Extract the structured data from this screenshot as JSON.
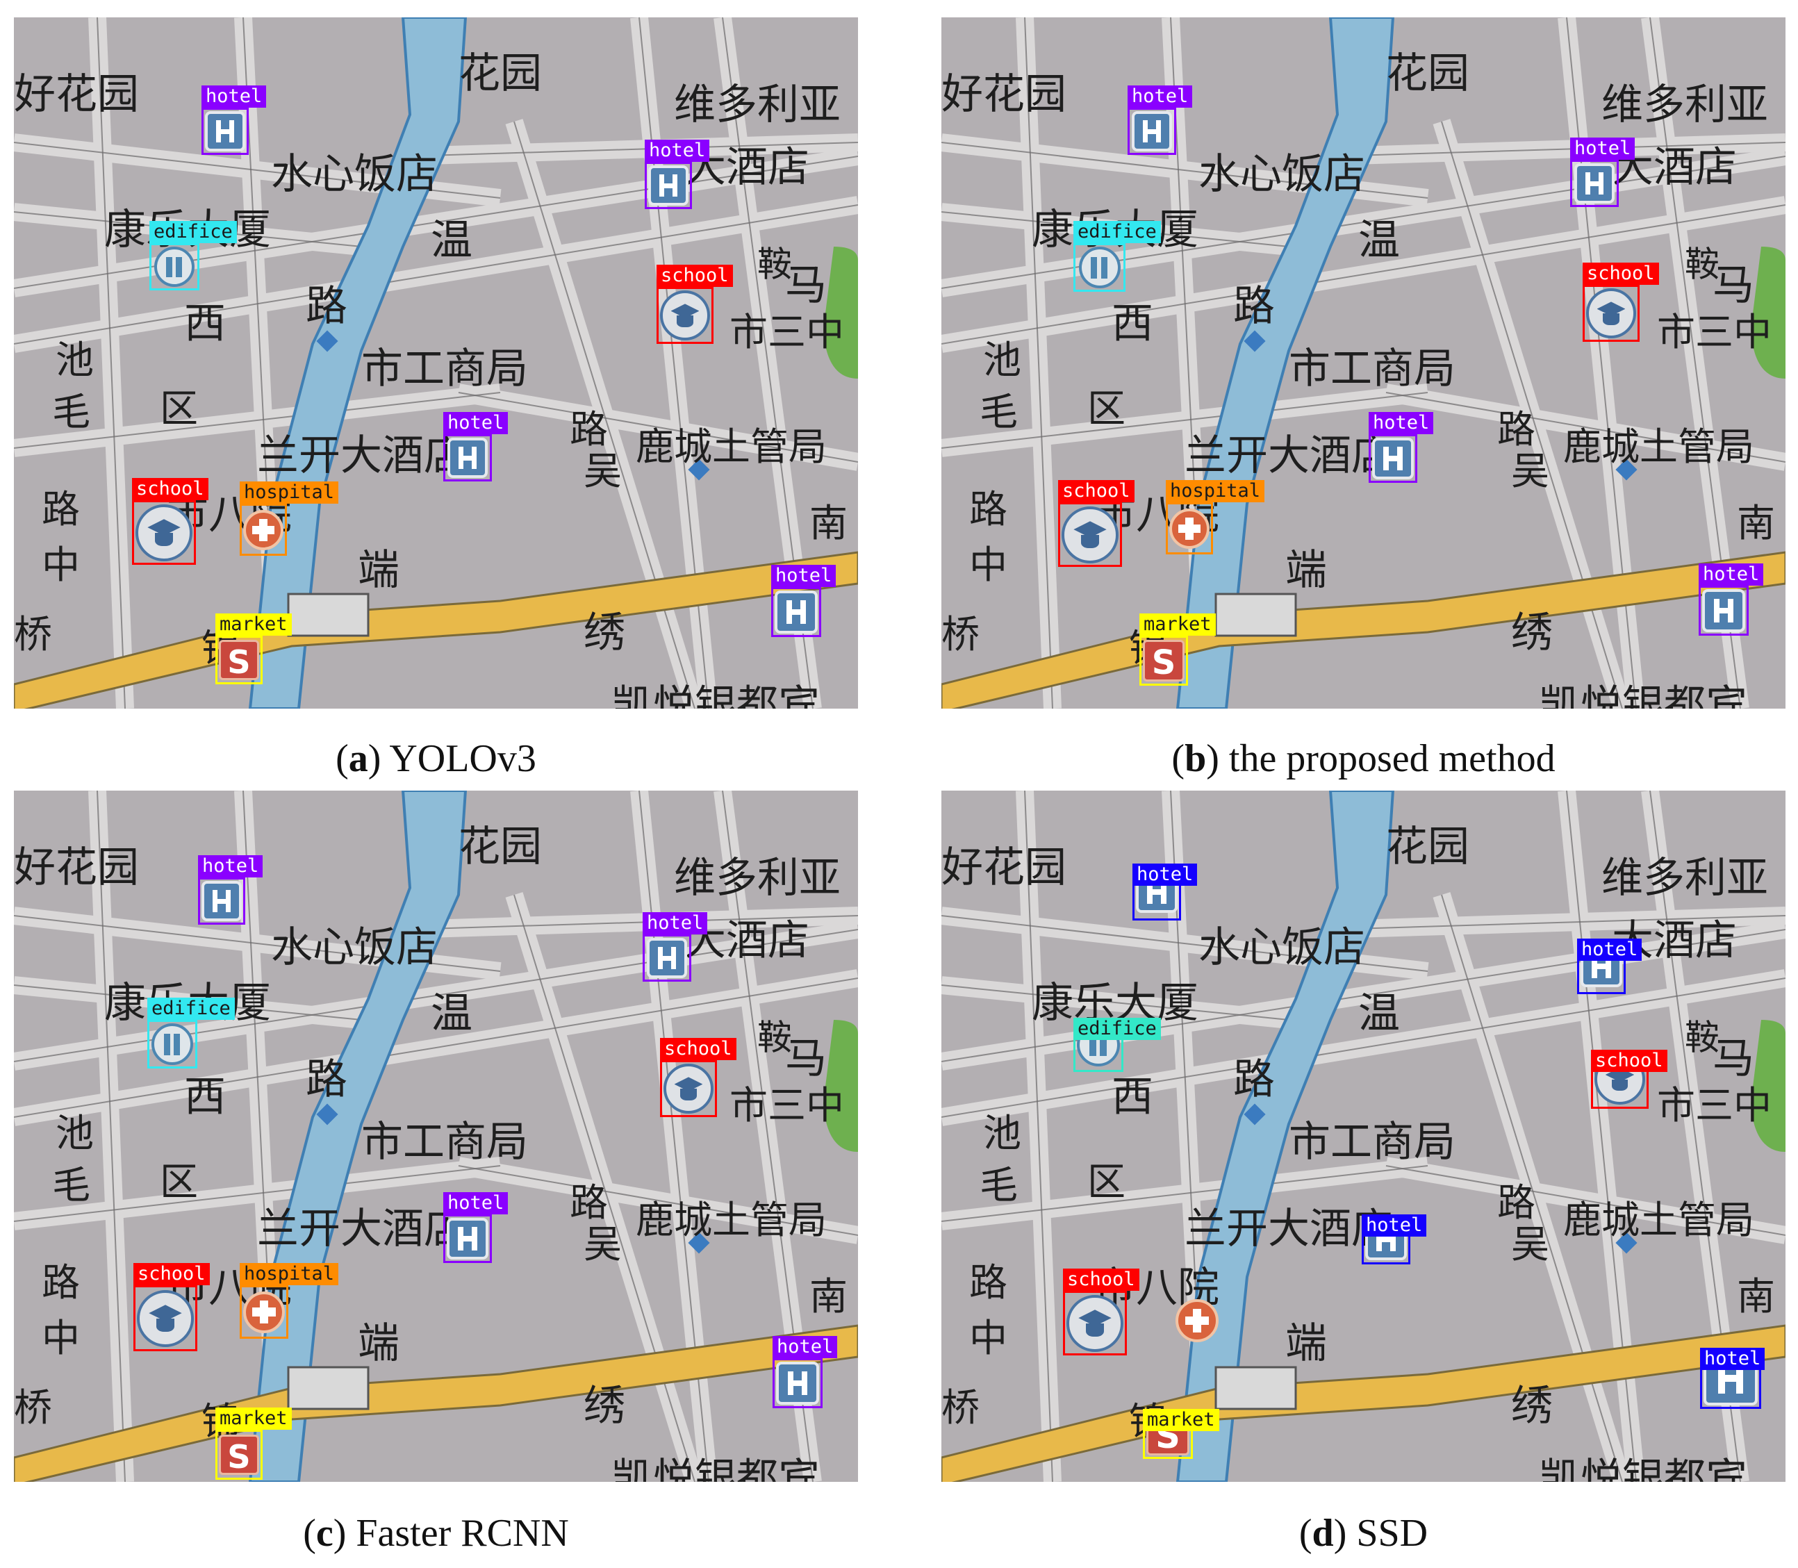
{
  "panels": [
    {
      "id": "a",
      "letter": "a",
      "method": " YOLOv3",
      "detections": [
        {
          "label": "hotel",
          "color": "#8a00ff",
          "text": "#ffffff",
          "tag": "above",
          "icon": "hotel"
        },
        {
          "label": "hotel",
          "color": "#8a00ff",
          "text": "#ffffff",
          "tag": "above",
          "icon": "hotel"
        },
        {
          "label": "edifice",
          "color": "#33e8f0",
          "text": "#1a1a1a",
          "tag": "above",
          "icon": "edifice"
        },
        {
          "label": "school",
          "color": "#ff0000",
          "text": "#ffffff",
          "tag": "above",
          "icon": "school"
        },
        {
          "label": "hotel",
          "color": "#8a00ff",
          "text": "#ffffff",
          "tag": "above",
          "icon": "hotel"
        },
        {
          "label": "school",
          "color": "#ff0000",
          "text": "#ffffff",
          "tag": "above",
          "icon": "school"
        },
        {
          "label": "hospital",
          "color": "#ff8c00",
          "text": "#1a1a1a",
          "tag": "above",
          "icon": "hospital"
        },
        {
          "label": "hotel",
          "color": "#8a00ff",
          "text": "#ffffff",
          "tag": "above",
          "icon": "hotel"
        },
        {
          "label": "market",
          "color": "#ffff00",
          "text": "#1a1a1a",
          "tag": "above",
          "icon": "market"
        }
      ]
    },
    {
      "id": "b",
      "letter": "b",
      "method": " the proposed method",
      "detections": [
        {
          "label": "hotel",
          "color": "#8a00ff",
          "text": "#ffffff",
          "tag": "above",
          "icon": "hotel"
        },
        {
          "label": "hotel",
          "color": "#8a00ff",
          "text": "#ffffff",
          "tag": "above",
          "icon": "hotel"
        },
        {
          "label": "edifice",
          "color": "#33e8f0",
          "text": "#1a1a1a",
          "tag": "above",
          "icon": "edifice"
        },
        {
          "label": "school",
          "color": "#ff0000",
          "text": "#ffffff",
          "tag": "above",
          "icon": "school"
        },
        {
          "label": "hotel",
          "color": "#8a00ff",
          "text": "#ffffff",
          "tag": "above",
          "icon": "hotel"
        },
        {
          "label": "school",
          "color": "#ff0000",
          "text": "#ffffff",
          "tag": "above",
          "icon": "school"
        },
        {
          "label": "hospital",
          "color": "#ff8c00",
          "text": "#1a1a1a",
          "tag": "above",
          "icon": "hospital"
        },
        {
          "label": "hotel",
          "color": "#8a00ff",
          "text": "#ffffff",
          "tag": "above",
          "icon": "hotel"
        },
        {
          "label": "market",
          "color": "#ffff00",
          "text": "#1a1a1a",
          "tag": "above",
          "icon": "market"
        }
      ]
    },
    {
      "id": "c",
      "letter": "c",
      "method": " Faster RCNN",
      "detections": [
        {
          "label": "hotel",
          "color": "#8a00ff",
          "text": "#ffffff",
          "tag": "above",
          "icon": "hotel"
        },
        {
          "label": "hotel",
          "color": "#8a00ff",
          "text": "#ffffff",
          "tag": "above",
          "icon": "hotel"
        },
        {
          "label": "edifice",
          "color": "#33e8f0",
          "text": "#1a1a1a",
          "tag": "above",
          "icon": "edifice"
        },
        {
          "label": "school",
          "color": "#ff0000",
          "text": "#ffffff",
          "tag": "above",
          "icon": "school"
        },
        {
          "label": "hotel",
          "color": "#8a00ff",
          "text": "#ffffff",
          "tag": "above",
          "icon": "hotel"
        },
        {
          "label": "school",
          "color": "#ff0000",
          "text": "#ffffff",
          "tag": "above",
          "icon": "school"
        },
        {
          "label": "hospital",
          "color": "#ff8c00",
          "text": "#1a1a1a",
          "tag": "above",
          "icon": "hospital"
        },
        {
          "label": "hotel",
          "color": "#8a00ff",
          "text": "#ffffff",
          "tag": "above",
          "icon": "hotel"
        },
        {
          "label": "market",
          "color": "#ffff00",
          "text": "#1a1a1a",
          "tag": "above",
          "icon": "market"
        }
      ]
    },
    {
      "id": "d",
      "letter": "d",
      "method": " SSD",
      "detections": [
        {
          "label": "hotel",
          "color": "#1400ff",
          "text": "#ffffff",
          "tag": "inside",
          "icon": "hotel"
        },
        {
          "label": "hotel",
          "color": "#1400ff",
          "text": "#ffffff",
          "tag": "inside",
          "icon": "hotel"
        },
        {
          "label": "edifice",
          "color": "#33e8c8",
          "text": "#1a1a1a",
          "tag": "inside",
          "icon": "edifice"
        },
        {
          "label": "school",
          "color": "#ff0000",
          "text": "#ffffff",
          "tag": "inside",
          "icon": "school"
        },
        {
          "label": "hotel",
          "color": "#1400ff",
          "text": "#ffffff",
          "tag": "inside",
          "icon": "hotel"
        },
        {
          "label": "school",
          "color": "#ff0000",
          "text": "#ffffff",
          "tag": "above",
          "icon": "school"
        },
        {
          "label": "hotel",
          "color": "#1400ff",
          "text": "#ffffff",
          "tag": "inside",
          "icon": "hotel"
        },
        {
          "label": "market",
          "color": "#ffff00",
          "text": "#1a1a1a",
          "tag": "inside",
          "icon": "market"
        }
      ]
    }
  ],
  "map_labels": [
    "好花园",
    "花园",
    "维多利亚",
    "大酒店",
    "水心饭店",
    "康乐大厦",
    "温",
    "鞍",
    "马",
    "路",
    "西",
    "池",
    "区",
    "市工商局",
    "市三中",
    "兰开大酒店",
    "鹿城土管局",
    "市八院",
    "南",
    "路",
    "中",
    "桥",
    "端",
    "锦",
    "绣",
    "凯悦银都宾",
    "吴",
    "路",
    "毛"
  ],
  "market_icon_letter": "S",
  "hospital_icon_present": true
}
